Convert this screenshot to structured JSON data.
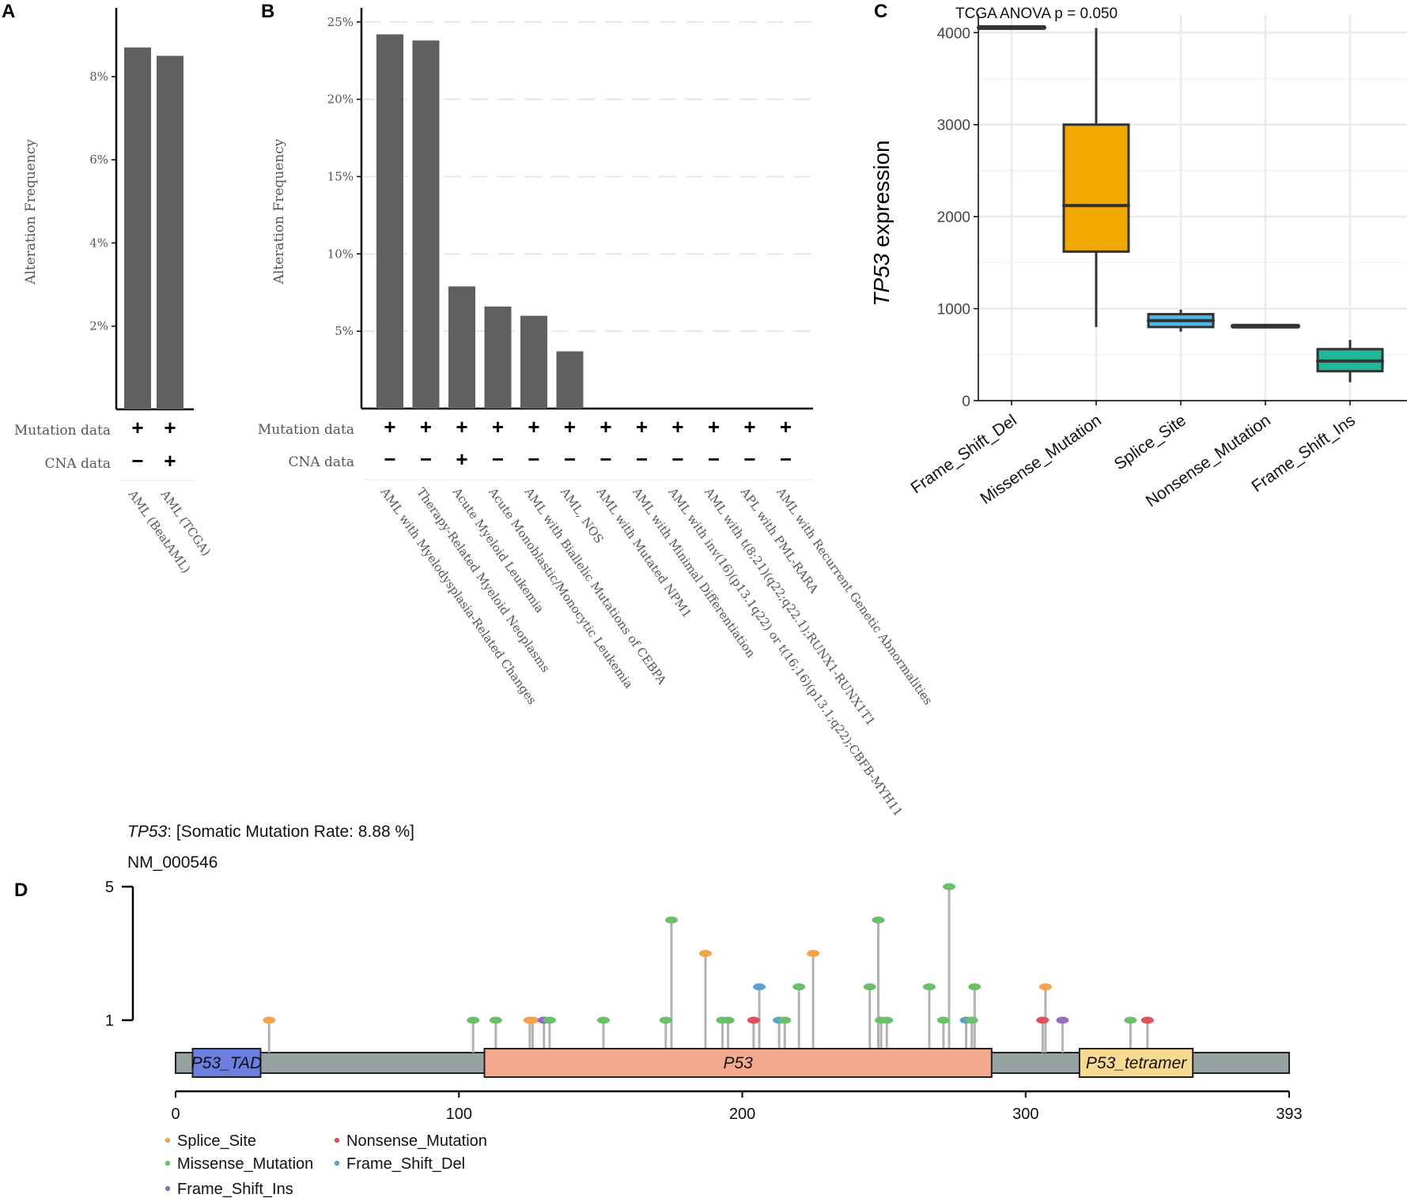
{
  "panels": {
    "A": "A",
    "B": "B",
    "C": "C",
    "D": "D"
  },
  "row_labels": {
    "mutation": "Mutation data",
    "cna": "CNA data"
  },
  "chart_data": [
    {
      "id": "A",
      "type": "bar",
      "ylabel": "Alteration Frequency",
      "ylim": [
        0,
        9.5
      ],
      "yticks": [
        2,
        4,
        6,
        8
      ],
      "ytick_labels": [
        "2%",
        "4%",
        "6%",
        "8%"
      ],
      "categories": [
        "AML (BeatAML)",
        "AML (TCGA)"
      ],
      "values": [
        8.7,
        8.5
      ],
      "mutation_data": [
        "+",
        "+"
      ],
      "cna_data": [
        "−",
        "+"
      ],
      "color": "#606060"
    },
    {
      "id": "B",
      "type": "bar",
      "ylabel": "Alteration Frequency",
      "ylim": [
        0,
        25.5
      ],
      "yticks": [
        5,
        10,
        15,
        20,
        25
      ],
      "ytick_labels": [
        "5%",
        "10%",
        "15%",
        "20%",
        "25%"
      ],
      "categories": [
        "AML with Myelodysplasia-Related Changes",
        "Therapy-Related Myeloid Neoplasms",
        "Acute Myeloid Leukemia",
        "Acute Monoblastic/Monocytic Leukemia",
        "AML with Biallelic Mutations of CEBPA",
        "AML, NOS",
        "AML with Mutated NPM1",
        "AML with Minimal Differentiation",
        "AML with inv(16)(p13.1q22) or t(16;16)(p13.1;q22);CBFB-MYH11",
        "AML with t(8;21)(q22;q22.1);RUNX1-RUNX1T1",
        "APL with PML-RARA",
        "AML with Recurrent Genetic Abnormalities"
      ],
      "values": [
        24.2,
        23.8,
        7.9,
        6.6,
        6.0,
        3.7,
        0,
        0,
        0,
        0,
        0,
        0
      ],
      "mutation_data": [
        "+",
        "+",
        "+",
        "+",
        "+",
        "+",
        "+",
        "+",
        "+",
        "+",
        "+",
        "+"
      ],
      "cna_data": [
        "−",
        "−",
        "+",
        "−",
        "−",
        "−",
        "−",
        "−",
        "−",
        "−",
        "−",
        "−"
      ],
      "color": "#606060"
    },
    {
      "id": "C",
      "type": "box",
      "title": "TCGA ANOVA p = 0.050",
      "ylabel_italic": "TP53",
      "ylabel_rest": " expression",
      "ylim": [
        0,
        4200
      ],
      "yticks": [
        0,
        1000,
        2000,
        3000,
        4000
      ],
      "categories": [
        "Frame_Shift_Del",
        "Missense_Mutation",
        "Splice_Site",
        "Nonsense_Mutation",
        "Frame_Shift_Ins"
      ],
      "boxes": [
        {
          "min": 4055,
          "q1": 4055,
          "median": 4055,
          "q3": 4055,
          "max": 4055,
          "color": "#f8766d"
        },
        {
          "min": 800,
          "q1": 1620,
          "median": 2120,
          "q3": 3000,
          "max": 4050,
          "color": "#f0a800"
        },
        {
          "min": 750,
          "q1": 800,
          "median": 870,
          "q3": 940,
          "max": 990,
          "color": "#4db8e8"
        },
        {
          "min": 810,
          "q1": 810,
          "median": 810,
          "q3": 810,
          "max": 810,
          "color": "#7fba00"
        },
        {
          "min": 200,
          "q1": 320,
          "median": 430,
          "q3": 560,
          "max": 660,
          "color": "#1fb89a"
        }
      ]
    },
    {
      "id": "D",
      "type": "lollipop",
      "title_gene": "TP53",
      "title_rest": ": [Somatic Mutation Rate: 8.88  %]",
      "transcript": "NM_000546",
      "xlim": [
        0,
        393
      ],
      "xticks": [
        0,
        100,
        200,
        300,
        393
      ],
      "yticks": [
        1,
        5
      ],
      "domains": [
        {
          "name": "P53_TAD",
          "start": 6,
          "end": 30,
          "color": "#6b7fe0"
        },
        {
          "name": "P53",
          "start": 109,
          "end": 288,
          "color": "#f4a88c"
        },
        {
          "name": "P53_tetramer",
          "start": 319,
          "end": 359,
          "color": "#f7d98f"
        }
      ],
      "legend": [
        {
          "label": "Splice_Site",
          "color": "#f5a34a"
        },
        {
          "label": "Nonsense_Mutation",
          "color": "#e0505a"
        },
        {
          "label": "Missense_Mutation",
          "color": "#6abf69"
        },
        {
          "label": "Frame_Shift_Del",
          "color": "#5ba0d0"
        },
        {
          "label": "Frame_Shift_Ins",
          "color": "#8e6fc0"
        }
      ],
      "mutations": [
        {
          "pos": 33,
          "count": 1,
          "type": "Splice_Site"
        },
        {
          "pos": 105,
          "count": 1,
          "type": "Missense_Mutation"
        },
        {
          "pos": 113,
          "count": 1,
          "type": "Missense_Mutation"
        },
        {
          "pos": 125,
          "count": 1,
          "type": "Splice_Site"
        },
        {
          "pos": 126,
          "count": 1,
          "type": "Splice_Site"
        },
        {
          "pos": 130,
          "count": 1,
          "type": "Frame_Shift_Ins"
        },
        {
          "pos": 132,
          "count": 1,
          "type": "Missense_Mutation"
        },
        {
          "pos": 151,
          "count": 1,
          "type": "Missense_Mutation"
        },
        {
          "pos": 173,
          "count": 1,
          "type": "Missense_Mutation"
        },
        {
          "pos": 175,
          "count": 4,
          "type": "Missense_Mutation"
        },
        {
          "pos": 187,
          "count": 3,
          "type": "Splice_Site"
        },
        {
          "pos": 193,
          "count": 1,
          "type": "Missense_Mutation"
        },
        {
          "pos": 195,
          "count": 1,
          "type": "Missense_Mutation"
        },
        {
          "pos": 204,
          "count": 1,
          "type": "Nonsense_Mutation"
        },
        {
          "pos": 206,
          "count": 2,
          "type": "Frame_Shift_Del"
        },
        {
          "pos": 213,
          "count": 1,
          "type": "Frame_Shift_Del"
        },
        {
          "pos": 215,
          "count": 1,
          "type": "Missense_Mutation"
        },
        {
          "pos": 220,
          "count": 2,
          "type": "Missense_Mutation"
        },
        {
          "pos": 225,
          "count": 3,
          "type": "Splice_Site"
        },
        {
          "pos": 245,
          "count": 2,
          "type": "Missense_Mutation"
        },
        {
          "pos": 248,
          "count": 4,
          "type": "Missense_Mutation"
        },
        {
          "pos": 249,
          "count": 1,
          "type": "Missense_Mutation"
        },
        {
          "pos": 251,
          "count": 1,
          "type": "Missense_Mutation"
        },
        {
          "pos": 266,
          "count": 2,
          "type": "Missense_Mutation"
        },
        {
          "pos": 271,
          "count": 1,
          "type": "Missense_Mutation"
        },
        {
          "pos": 273,
          "count": 5,
          "type": "Missense_Mutation"
        },
        {
          "pos": 279,
          "count": 1,
          "type": "Frame_Shift_Del"
        },
        {
          "pos": 281,
          "count": 1,
          "type": "Missense_Mutation"
        },
        {
          "pos": 282,
          "count": 2,
          "type": "Missense_Mutation"
        },
        {
          "pos": 306,
          "count": 1,
          "type": "Nonsense_Mutation"
        },
        {
          "pos": 307,
          "count": 2,
          "type": "Splice_Site"
        },
        {
          "pos": 313,
          "count": 1,
          "type": "Frame_Shift_Ins"
        },
        {
          "pos": 337,
          "count": 1,
          "type": "Missense_Mutation"
        },
        {
          "pos": 343,
          "count": 1,
          "type": "Nonsense_Mutation"
        }
      ]
    }
  ]
}
